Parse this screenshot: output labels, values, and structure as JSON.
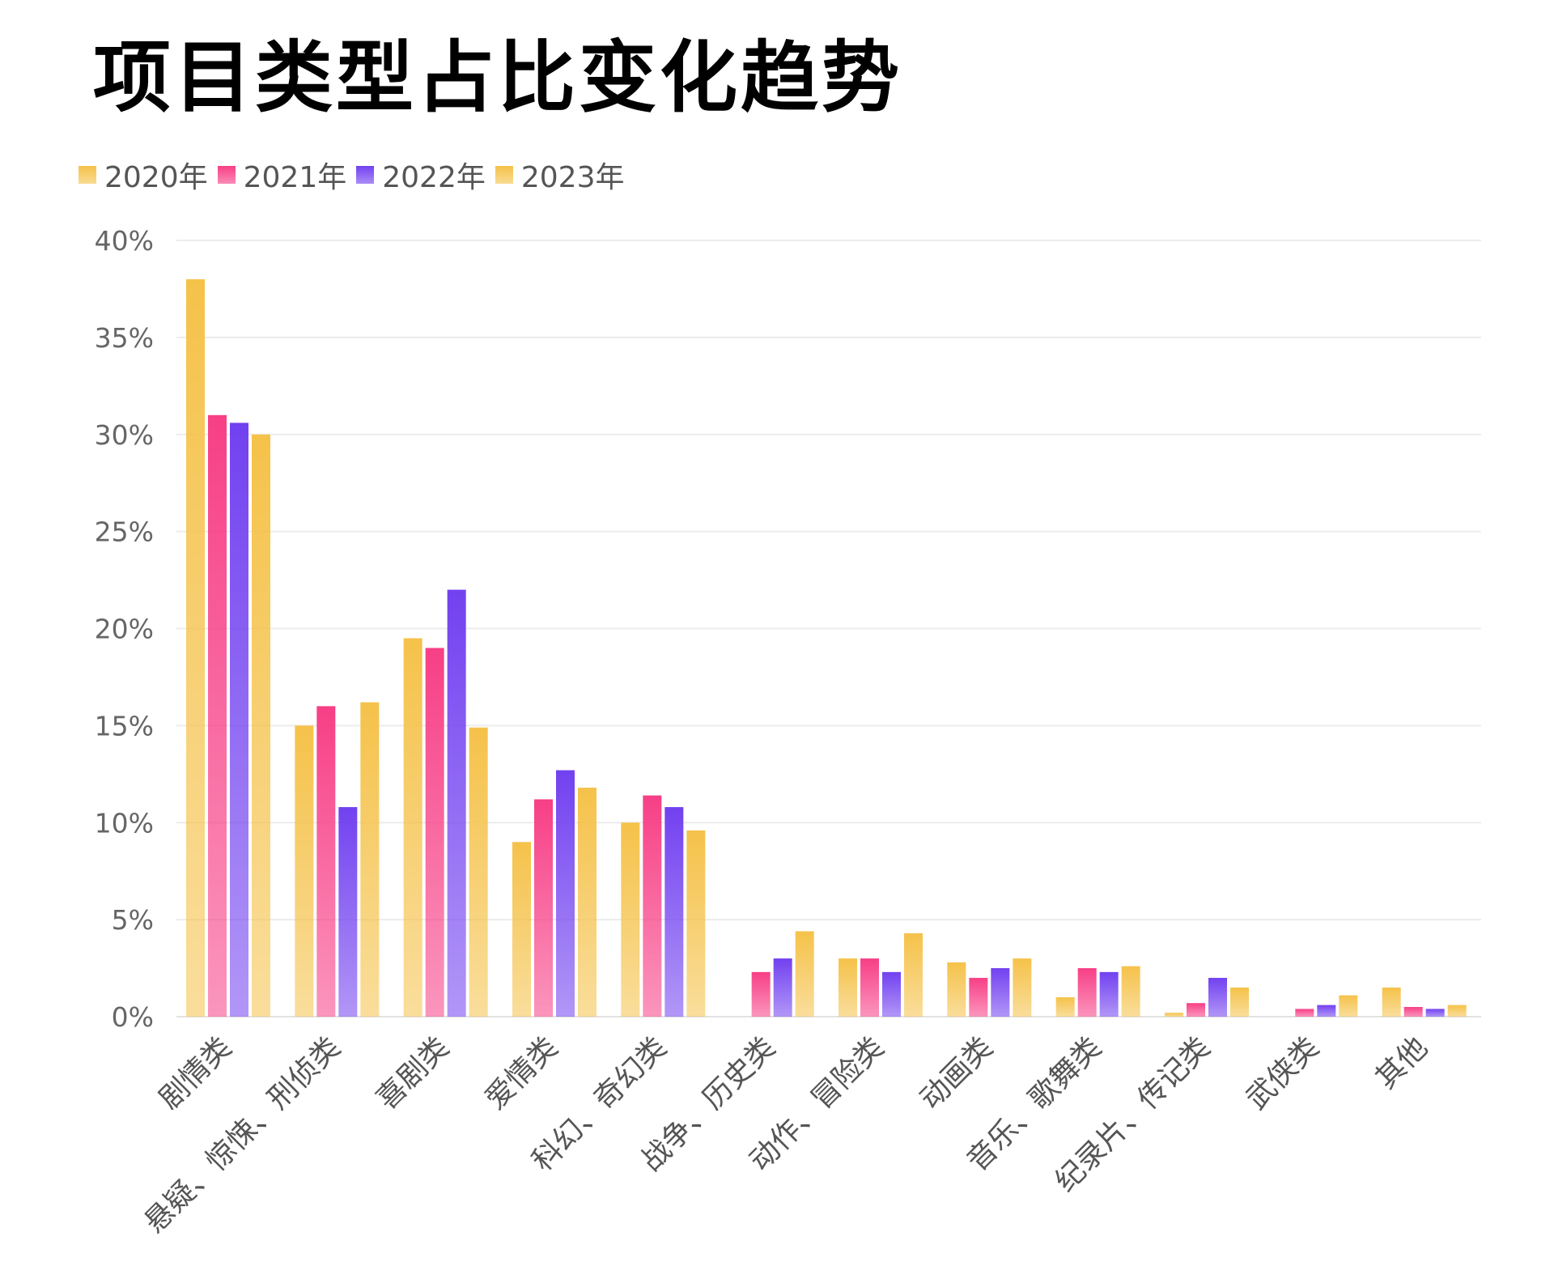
{
  "title": "项目类型占比变化趋势",
  "chart_data": {
    "type": "bar",
    "title": "项目类型占比变化趋势",
    "xlabel": "",
    "ylabel": "",
    "ylim": [
      0,
      40
    ],
    "y_ticks": [
      {
        "value": 0,
        "label": "0%"
      },
      {
        "value": 5,
        "label": "5%"
      },
      {
        "value": 10,
        "label": "10%"
      },
      {
        "value": 15,
        "label": "15%"
      },
      {
        "value": 20,
        "label": "20%"
      },
      {
        "value": 25,
        "label": "25%"
      },
      {
        "value": 30,
        "label": "30%"
      },
      {
        "value": 35,
        "label": "35%"
      },
      {
        "value": 40,
        "label": "40%"
      }
    ],
    "grid": true,
    "legend_position": "top-left",
    "categories": [
      "剧情类",
      "悬疑、惊悚、刑侦类",
      "喜剧类",
      "爱情类",
      "科幻、奇幻类",
      "战争、历史类",
      "动作、冒险类",
      "动画类",
      "音乐、歌舞类",
      "纪录片、传记类",
      "武侠类",
      "其他"
    ],
    "series": [
      {
        "name": "2020年",
        "color": "#F5C24A",
        "values": [
          38.0,
          15.0,
          19.5,
          9.0,
          10.0,
          0,
          3.0,
          2.8,
          1.0,
          0.2,
          0,
          1.5
        ]
      },
      {
        "name": "2021年",
        "color": "#F73F86",
        "values": [
          31.0,
          16.0,
          19.0,
          11.2,
          11.4,
          2.3,
          3.0,
          2.0,
          2.5,
          0.7,
          0.4,
          0.5
        ]
      },
      {
        "name": "2022年",
        "color": "#7241F0",
        "values": [
          30.6,
          10.8,
          22.0,
          12.7,
          10.8,
          3.0,
          2.3,
          2.5,
          2.3,
          2.0,
          0.6,
          0.4
        ]
      },
      {
        "name": "2023年",
        "color": "#F5C24A",
        "values": [
          30.0,
          16.2,
          14.9,
          11.8,
          9.6,
          4.4,
          4.3,
          3.0,
          2.6,
          1.5,
          1.1,
          0.6
        ]
      }
    ]
  }
}
